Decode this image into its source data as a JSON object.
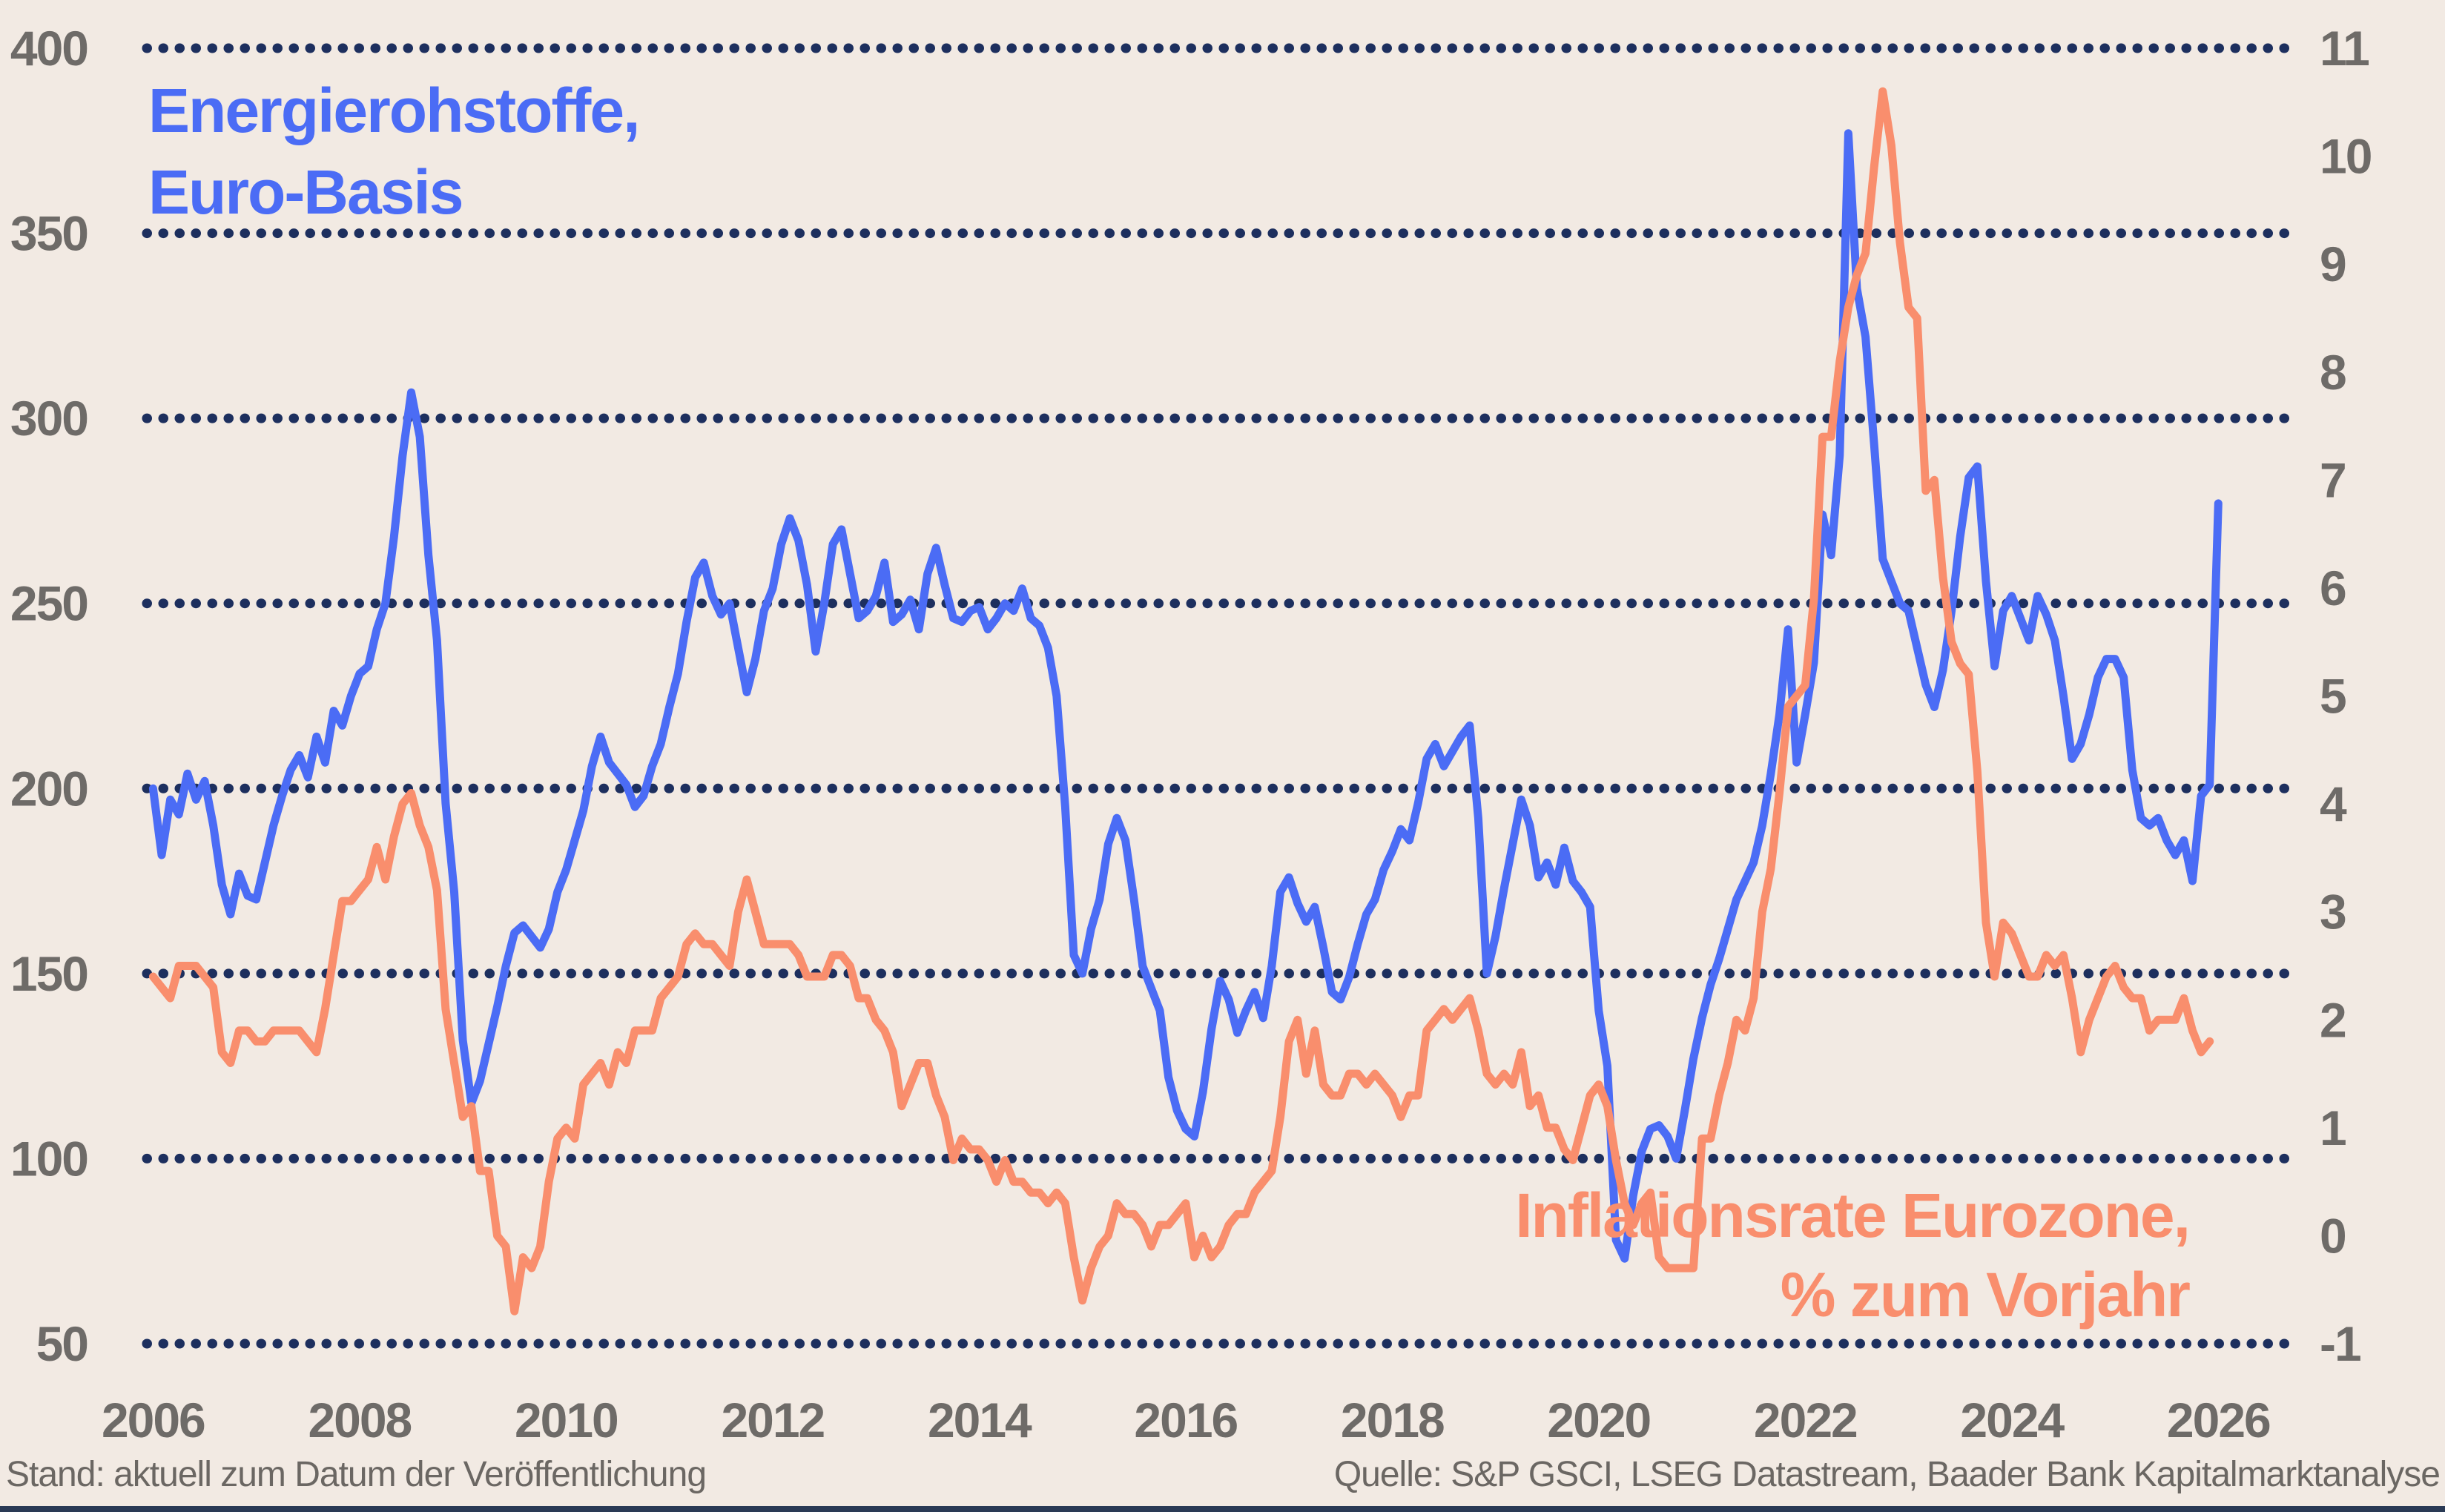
{
  "annotations": {
    "left_series_line1": "Energierohstoffe,",
    "left_series_line2": "Euro-Basis",
    "right_series_line1": "Inflationsrate Eurozone,",
    "right_series_line2": "% zum Vorjahr"
  },
  "footer": {
    "status_note": "Stand: aktuell zum Datum der Veröffentlichung",
    "source_note": "Quelle: S&P GSCI, LSEG Datastream, Baader Bank Kapitalmarktanalyse"
  },
  "colors": {
    "background": "#f2eae3",
    "grid_dots": "#1d2f5e",
    "axis_text": "#6e6b68",
    "energy_line": "#4b6cf5",
    "inflation_line": "#f98e6d",
    "bottom_border": "#2a3a55"
  },
  "chart_data": {
    "type": "line",
    "title": "",
    "xlabel": "",
    "ylabel_left": "Energierohstoffe, Euro-Basis (Index)",
    "ylabel_right": "Inflationsrate Eurozone, % zum Vorjahr",
    "grid": "dotted-horizontal",
    "legend_position": "annotated-on-chart",
    "x_ticks": [
      2006,
      2008,
      2010,
      2012,
      2014,
      2016,
      2018,
      2020,
      2022,
      2024,
      2026
    ],
    "x_range": [
      2005.94,
      2026.73
    ],
    "y_left": {
      "min": 50,
      "max": 400,
      "ticks": [
        400,
        350,
        300,
        250,
        200,
        150,
        100,
        50
      ]
    },
    "y_right": {
      "min": -1,
      "max": 11,
      "ticks": [
        11,
        10,
        9,
        8,
        7,
        6,
        5,
        4,
        3,
        2,
        1,
        0,
        -1
      ]
    },
    "series": [
      {
        "name": "Energierohstoffe, Euro-Basis",
        "axis": "left",
        "color": "#4b6cf5",
        "start_year": 2006,
        "interval_months": 1,
        "values": [
          200,
          182,
          197,
          193,
          204,
          197,
          202,
          190,
          174,
          166,
          177,
          171,
          170,
          180,
          190,
          198,
          205,
          209,
          203,
          214,
          207,
          221,
          217,
          225,
          231,
          233,
          243,
          250,
          268,
          290,
          307,
          295,
          263,
          240,
          196,
          172,
          132,
          115,
          121,
          131,
          141,
          152,
          161,
          163,
          160,
          157,
          162,
          172,
          178,
          186,
          194,
          206,
          214,
          207,
          204,
          201,
          195,
          198,
          206,
          212,
          222,
          231,
          245,
          257,
          261,
          252,
          247,
          250,
          238,
          226,
          235,
          248,
          254,
          266,
          273,
          267,
          255,
          237,
          250,
          266,
          270,
          258,
          246,
          248,
          252,
          261,
          245,
          247,
          251,
          243,
          258,
          265,
          255,
          246,
          245,
          248,
          249,
          243,
          246,
          250,
          248,
          254,
          246,
          244,
          238,
          225,
          195,
          155,
          150,
          162,
          170,
          185,
          192,
          186,
          170,
          152,
          146,
          140,
          122,
          113,
          108,
          106,
          118,
          135,
          148,
          143,
          134,
          140,
          145,
          138,
          152,
          172,
          176,
          169,
          164,
          168,
          157,
          145,
          143,
          149,
          158,
          166,
          170,
          178,
          183,
          189,
          186,
          196,
          208,
          212,
          206,
          210,
          214,
          217,
          192,
          150,
          160,
          173,
          185,
          197,
          190,
          176,
          180,
          174,
          184,
          175,
          172,
          168,
          140,
          125,
          78,
          73,
          90,
          102,
          108,
          109,
          106,
          100,
          113,
          127,
          138,
          147,
          154,
          162,
          170,
          175,
          180,
          190,
          204,
          220,
          243,
          207,
          220,
          234,
          274,
          263,
          290,
          377,
          335,
          322,
          293,
          262,
          256,
          250,
          248,
          238,
          228,
          222,
          232,
          248,
          268,
          284,
          287,
          256,
          233,
          248,
          252,
          246,
          240,
          252,
          247,
          240,
          225,
          208,
          212,
          220,
          230,
          235,
          235,
          230,
          205,
          192,
          190,
          192,
          186,
          182,
          186,
          175,
          198,
          201,
          277
        ]
      },
      {
        "name": "Inflationsrate Eurozone, % zum Vorjahr",
        "axis": "right",
        "color": "#f98e6d",
        "start_year": 2006,
        "interval_months": 1,
        "values": [
          2.4,
          2.3,
          2.2,
          2.5,
          2.5,
          2.5,
          2.4,
          2.3,
          1.7,
          1.6,
          1.9,
          1.9,
          1.8,
          1.8,
          1.9,
          1.9,
          1.9,
          1.9,
          1.8,
          1.7,
          2.1,
          2.6,
          3.1,
          3.1,
          3.2,
          3.3,
          3.6,
          3.3,
          3.7,
          4.0,
          4.1,
          3.8,
          3.6,
          3.2,
          2.1,
          1.6,
          1.1,
          1.2,
          0.6,
          0.6,
          0.0,
          -0.1,
          -0.7,
          -0.2,
          -0.3,
          -0.1,
          0.5,
          0.9,
          1.0,
          0.9,
          1.4,
          1.5,
          1.6,
          1.4,
          1.7,
          1.6,
          1.9,
          1.9,
          1.9,
          2.2,
          2.3,
          2.4,
          2.7,
          2.8,
          2.7,
          2.7,
          2.6,
          2.5,
          3.0,
          3.3,
          3.0,
          2.7,
          2.7,
          2.7,
          2.7,
          2.6,
          2.4,
          2.4,
          2.4,
          2.6,
          2.6,
          2.5,
          2.2,
          2.2,
          2.0,
          1.9,
          1.7,
          1.2,
          1.4,
          1.6,
          1.6,
          1.3,
          1.1,
          0.7,
          0.9,
          0.8,
          0.8,
          0.7,
          0.5,
          0.7,
          0.5,
          0.5,
          0.4,
          0.4,
          0.3,
          0.4,
          0.3,
          -0.2,
          -0.6,
          -0.3,
          -0.1,
          0.0,
          0.3,
          0.2,
          0.2,
          0.1,
          -0.1,
          0.1,
          0.1,
          0.2,
          0.3,
          -0.2,
          0.0,
          -0.2,
          -0.1,
          0.1,
          0.2,
          0.2,
          0.4,
          0.5,
          0.6,
          1.1,
          1.8,
          2.0,
          1.5,
          1.9,
          1.4,
          1.3,
          1.3,
          1.5,
          1.5,
          1.4,
          1.5,
          1.4,
          1.3,
          1.1,
          1.3,
          1.3,
          1.9,
          2.0,
          2.1,
          2.0,
          2.1,
          2.2,
          1.9,
          1.5,
          1.4,
          1.5,
          1.4,
          1.7,
          1.2,
          1.3,
          1.0,
          1.0,
          0.8,
          0.7,
          1.0,
          1.3,
          1.4,
          1.2,
          0.7,
          0.3,
          0.1,
          0.3,
          0.4,
          -0.2,
          -0.3,
          -0.3,
          -0.3,
          -0.3,
          0.9,
          0.9,
          1.3,
          1.6,
          2.0,
          1.9,
          2.2,
          3.0,
          3.4,
          4.1,
          4.9,
          5.0,
          5.1,
          5.9,
          7.4,
          7.4,
          8.1,
          8.6,
          8.9,
          9.1,
          9.9,
          10.6,
          10.1,
          9.2,
          8.6,
          8.5,
          6.9,
          7.0,
          6.1,
          5.5,
          5.3,
          5.2,
          4.3,
          2.9,
          2.4,
          2.9,
          2.8,
          2.6,
          2.4,
          2.4,
          2.6,
          2.5,
          2.6,
          2.2,
          1.7,
          2.0,
          2.2,
          2.4,
          2.5,
          2.3,
          2.2,
          2.2,
          1.9,
          2.0,
          2.0,
          2.0,
          2.2,
          1.9,
          1.7,
          1.8
        ]
      }
    ]
  }
}
